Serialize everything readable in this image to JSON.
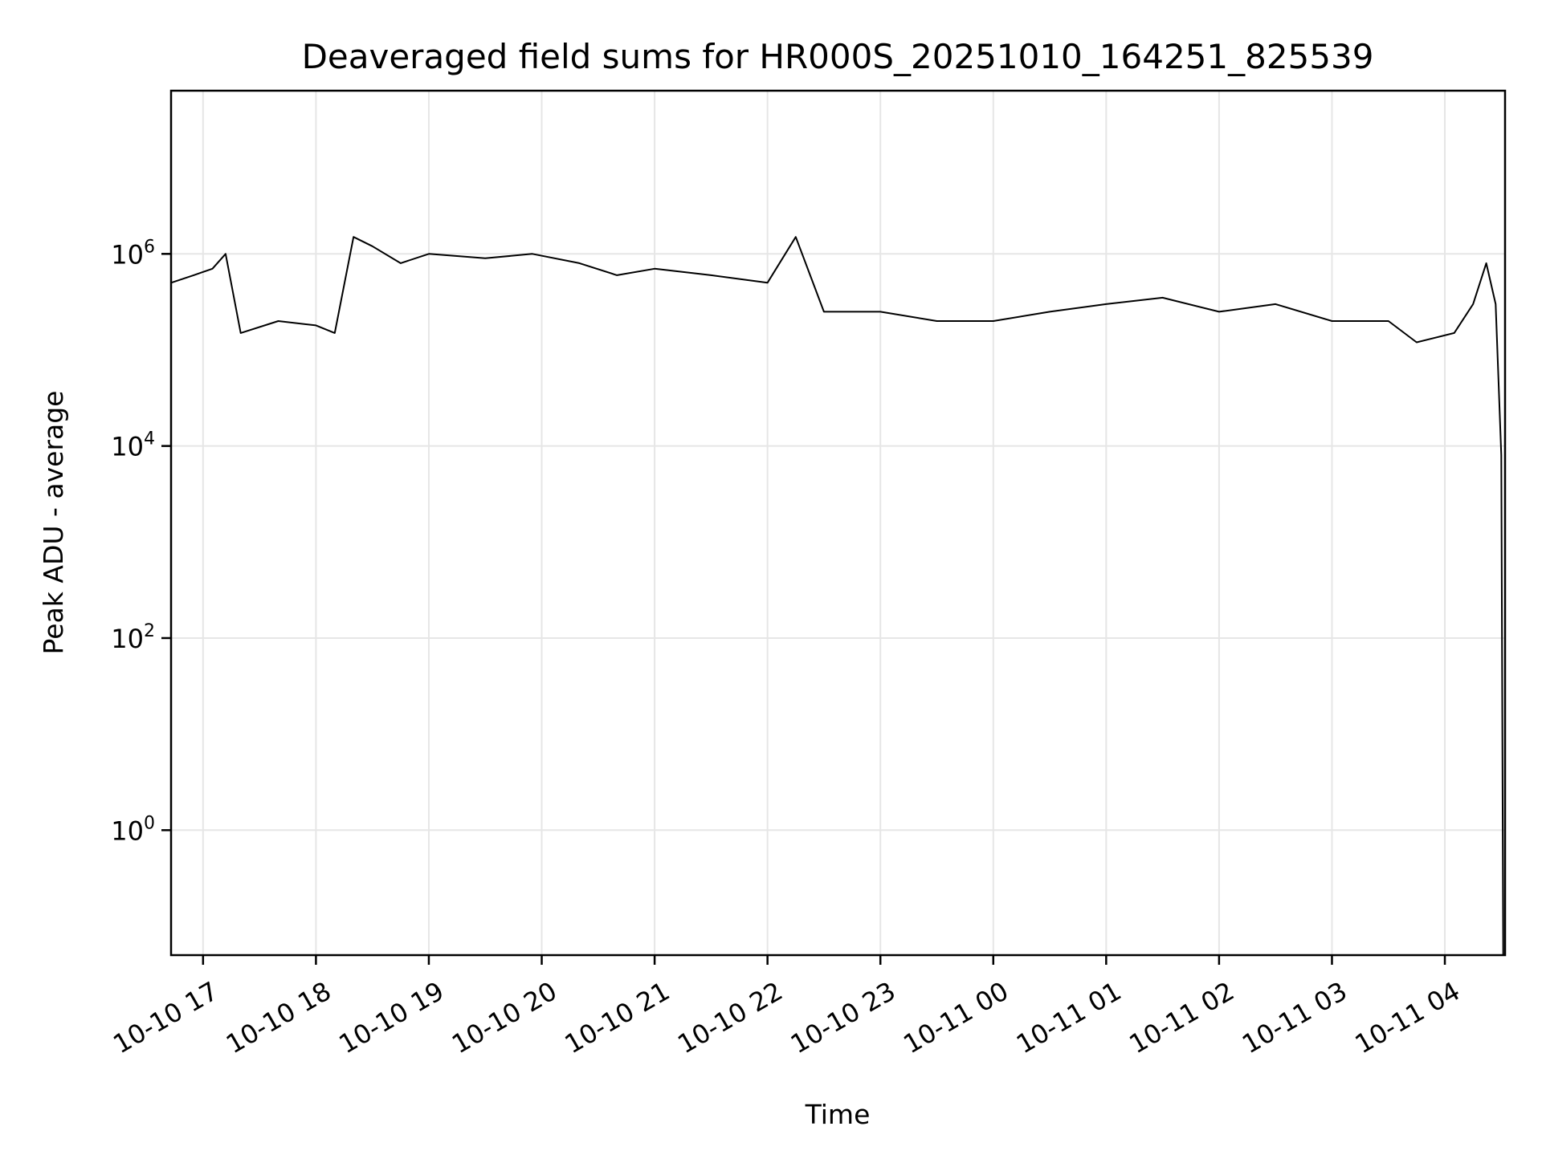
{
  "chart_data": {
    "type": "line",
    "title": "Deaveraged field sums for HR000S_20251010_164251_825539",
    "xlabel": "Time",
    "ylabel": "Peak ADU - average",
    "yscale": "log",
    "xlim": [
      "2025-10-10 16:43",
      "2025-10-11 04:32"
    ],
    "ylim": [
      0.05,
      50000000
    ],
    "grid": true,
    "x_ticks": [
      "10-10 17",
      "10-10 18",
      "10-10 19",
      "10-10 20",
      "10-10 21",
      "10-10 22",
      "10-10 23",
      "10-11 00",
      "10-11 01",
      "10-11 02",
      "10-11 03",
      "10-11 04"
    ],
    "y_ticks": [
      {
        "value": 1,
        "base": "10",
        "exp": "0"
      },
      {
        "value": 100,
        "base": "10",
        "exp": "2"
      },
      {
        "value": 10000,
        "base": "10",
        "exp": "4"
      },
      {
        "value": 1000000,
        "base": "10",
        "exp": "6"
      }
    ],
    "line_color": "#000000",
    "series": [
      {
        "x": [
          "2025-10-10 16:43",
          "2025-10-10 16:55",
          "2025-10-10 17:05",
          "2025-10-10 17:12",
          "2025-10-10 17:20",
          "2025-10-10 17:40",
          "2025-10-10 18:00",
          "2025-10-10 18:10",
          "2025-10-10 18:20",
          "2025-10-10 18:30",
          "2025-10-10 18:45",
          "2025-10-10 19:00",
          "2025-10-10 19:30",
          "2025-10-10 19:55",
          "2025-10-10 20:20",
          "2025-10-10 20:40",
          "2025-10-10 21:00",
          "2025-10-10 21:30",
          "2025-10-10 22:00",
          "2025-10-10 22:15",
          "2025-10-10 22:30",
          "2025-10-10 23:00",
          "2025-10-10 23:30",
          "2025-10-11 00:00",
          "2025-10-11 00:30",
          "2025-10-11 01:00",
          "2025-10-11 01:30",
          "2025-10-11 02:00",
          "2025-10-11 02:30",
          "2025-10-11 03:00",
          "2025-10-11 03:30",
          "2025-10-11 03:45",
          "2025-10-11 04:05",
          "2025-10-11 04:15",
          "2025-10-11 04:22",
          "2025-10-11 04:27",
          "2025-10-11 04:30",
          "2025-10-11 04:31"
        ],
        "y": [
          500000,
          600000,
          700000,
          1000000,
          150000,
          200000,
          180000,
          150000,
          1500000,
          1200000,
          800000,
          1000000,
          900000,
          1000000,
          800000,
          600000,
          700000,
          600000,
          500000,
          1500000,
          250000,
          250000,
          200000,
          200000,
          250000,
          300000,
          350000,
          250000,
          300000,
          200000,
          200000,
          120000,
          150000,
          300000,
          800000,
          300000,
          8000,
          0.05
        ]
      }
    ]
  }
}
